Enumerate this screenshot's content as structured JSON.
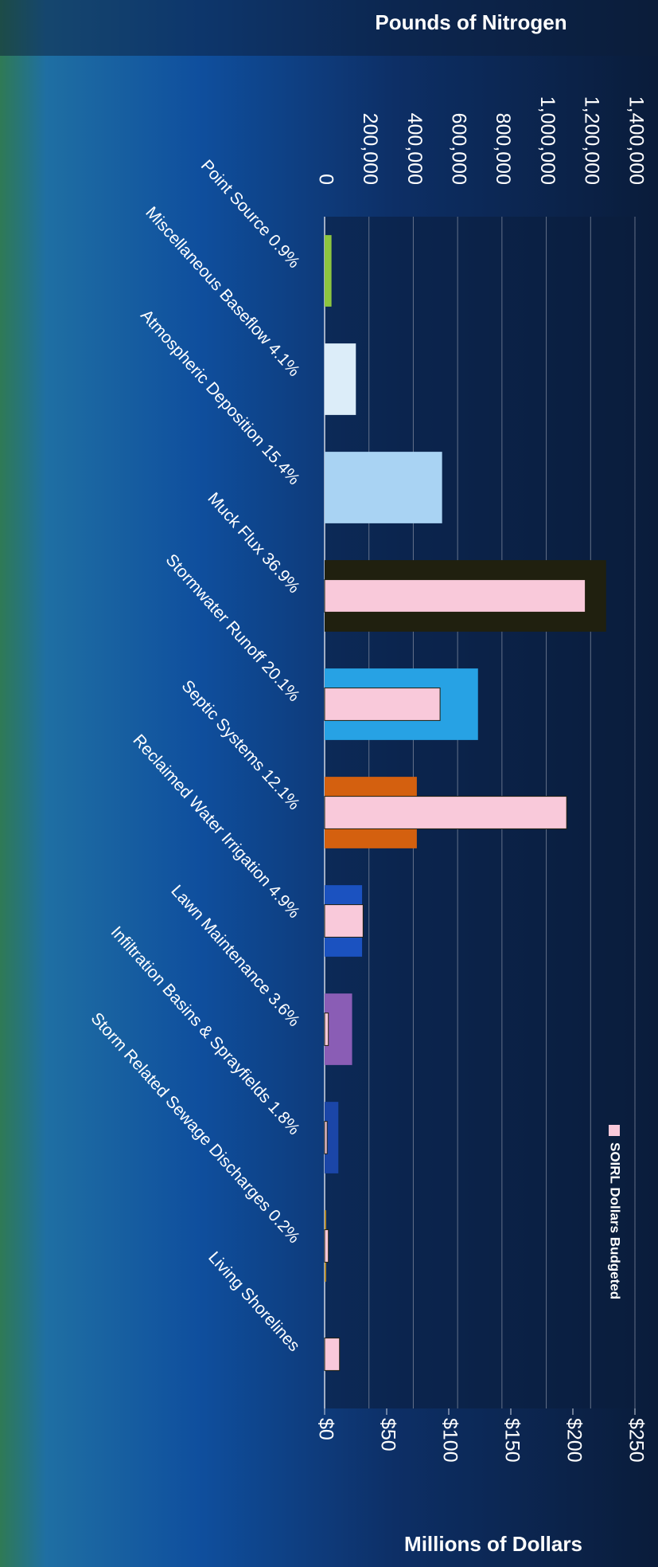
{
  "chart_data": {
    "type": "bar",
    "orientation": "horizontal",
    "title": "Pounds of Nitrogen",
    "y2_title": "Millions of Dollars",
    "categories": [
      "Point Source 0.9%",
      "Miscellaneous Baseflow 4.1%",
      "Atmospheric Deposition 15.4%",
      "Muck Flux 36.9%",
      "Stormwater Runoff 20.1%",
      "Septic Systems 12.1%",
      "Reclaimed Water Irrigation 4.9%",
      "Lawn Maintenance 3.6%",
      "Infiltration Basins & Sprayfields 1.8%",
      "Storm Related Sewage Discharges 0.2%",
      "Living Shorelines"
    ],
    "series": [
      {
        "values": [
          31000,
          141000,
          530000,
          1270000,
          692000,
          416000,
          169000,
          124000,
          62000,
          7000,
          null
        ],
        "colors": [
          "#8dc63f",
          "#dcedf9",
          "#a9d3f3",
          "#20200f",
          "#27a2e4",
          "#d4600f",
          "#1b52c0",
          "#8a5db5",
          "#1b46a8",
          "#b38a2a",
          null
        ]
      },
      {
        "name": "SOIRL Dollars Budgeted",
        "color": "#f9c9da",
        "axis": "y2",
        "values": [
          null,
          null,
          null,
          210,
          93,
          195,
          31,
          3,
          2,
          3,
          12
        ]
      }
    ],
    "ylim": [
      0,
      1400000
    ],
    "yticks": [
      0,
      {
        "value": 200000,
        "label": "200,000"
      },
      {
        "value": 400000,
        "label": "400,000"
      },
      {
        "value": 600000,
        "label": "600,000"
      },
      {
        "value": 800000,
        "label": "800,000"
      },
      {
        "value": 1000000,
        "label": "1,000,000"
      },
      {
        "value": 1200000,
        "label": "1,200,000"
      },
      {
        "value": 1400000,
        "label": "1,400,000"
      }
    ],
    "y2lim": [
      0,
      250
    ],
    "y2ticks": [
      {
        "value": 0,
        "label": "$0"
      },
      {
        "value": 50,
        "label": "$50"
      },
      {
        "value": 100,
        "label": "$100"
      },
      {
        "value": 150,
        "label": "$150"
      },
      {
        "value": 200,
        "label": "$200"
      },
      {
        "value": 250,
        "label": "$250"
      }
    ],
    "grid": true
  }
}
